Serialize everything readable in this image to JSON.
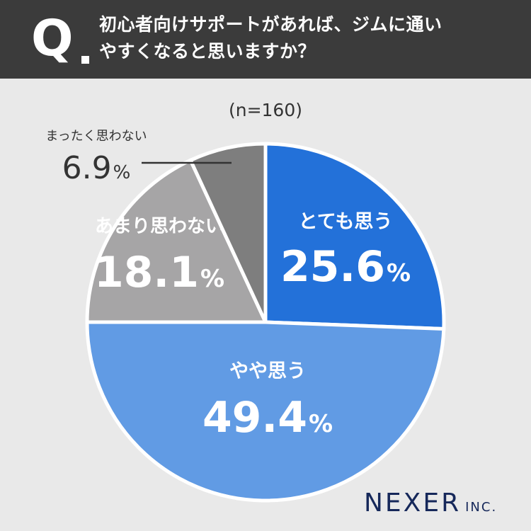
{
  "header": {
    "q_letter": "Q",
    "question_lines": [
      "初心者向けサポートがあれば、ジムに通い",
      "やすくなると思いますか？"
    ]
  },
  "sample": "(n=160)",
  "chart_data": {
    "type": "pie",
    "title": "",
    "categories": [
      "とても思う",
      "やや思う",
      "あまり思わない",
      "まったく思わない"
    ],
    "values": [
      25.6,
      49.4,
      18.1,
      6.9
    ],
    "unit": "%",
    "colors": [
      "#2371d9",
      "#619be4",
      "#a6a5a6",
      "#7e7e7e"
    ],
    "start": "12 o'clock, clockwise",
    "legend": "none (direct labels)"
  },
  "brand": {
    "name": "NEXER",
    "suffix": "INC."
  }
}
